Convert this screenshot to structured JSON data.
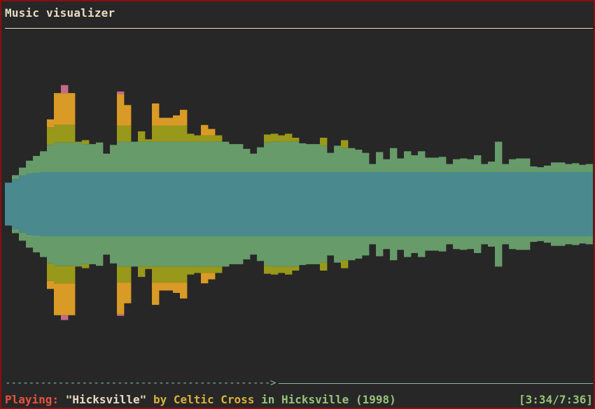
{
  "window": {
    "title": "Music visualizer"
  },
  "status": {
    "label": "Playing:",
    "track": "\"Hicksville\"",
    "by": "by",
    "artist": "Celtic Cross",
    "in": "in",
    "album": "Hicksville",
    "year": "(1998)",
    "time": "[3:34/7:36]"
  },
  "playback": {
    "progress_fraction": 0.47
  },
  "colors": {
    "background": "#272727",
    "border": "#8e0d0d",
    "band_bass": "#4a8a8e",
    "band_mid": "#679b6a",
    "band_upper": "#98981a",
    "band_high": "#d99a26",
    "band_peak": "#c46a8a"
  },
  "spectrum": {
    "columns": 84,
    "top": [
      [
        1,
        0,
        0,
        0
      ],
      [
        2,
        0,
        0,
        0
      ],
      [
        3,
        0,
        0,
        0
      ],
      [
        4,
        0,
        0,
        0
      ],
      [
        4,
        0,
        0,
        0
      ],
      [
        4,
        0,
        0,
        0
      ],
      [
        4,
        2,
        1,
        0
      ],
      [
        4,
        2,
        4,
        0
      ],
      [
        4,
        2,
        4,
        1
      ],
      [
        4,
        2,
        4,
        0
      ],
      [
        4,
        2,
        0,
        0
      ],
      [
        4,
        1,
        0,
        0
      ],
      [
        4,
        0,
        0,
        0
      ],
      [
        4,
        0,
        0,
        0
      ],
      [
        3,
        0,
        0,
        0
      ],
      [
        4,
        0,
        0,
        0
      ],
      [
        4,
        2,
        3,
        1
      ],
      [
        4,
        2,
        2,
        0
      ],
      [
        4,
        1,
        0,
        0
      ],
      [
        4,
        2,
        0,
        0
      ],
      [
        4,
        1,
        0,
        0
      ],
      [
        4,
        2,
        1,
        2
      ],
      [
        4,
        2,
        1,
        0
      ],
      [
        4,
        2,
        1,
        0
      ],
      [
        4,
        2,
        2,
        0
      ],
      [
        4,
        0,
        0,
        0
      ],
      [
        4,
        1,
        1,
        0
      ],
      [
        4,
        1,
        0,
        0
      ],
      [
        4,
        1,
        2,
        0
      ],
      [
        4,
        1,
        1,
        0
      ],
      [
        4,
        1,
        0,
        0
      ],
      [
        4,
        1,
        0,
        0
      ],
      [
        4,
        0,
        0,
        0
      ],
      [
        4,
        0,
        0,
        0
      ],
      [
        4,
        0,
        0,
        0
      ],
      [
        4,
        0,
        0,
        0
      ],
      [
        4,
        0,
        0,
        0
      ],
      [
        4,
        0,
        0,
        0
      ],
      [
        4,
        1,
        0,
        0
      ],
      [
        4,
        1,
        0,
        0
      ],
      [
        4,
        1,
        0,
        0
      ],
      [
        4,
        1,
        0,
        0
      ],
      [
        4,
        1,
        0,
        0
      ],
      [
        4,
        1,
        0,
        0
      ],
      [
        4,
        1,
        0,
        0
      ],
      [
        4,
        1,
        0,
        0
      ],
      [
        4,
        0,
        0,
        0
      ],
      [
        4,
        0,
        0,
        0
      ],
      [
        4,
        2,
        0,
        0
      ],
      [
        4,
        2,
        0,
        0
      ],
      [
        4,
        2,
        0,
        0
      ],
      [
        4,
        2,
        0,
        0
      ],
      [
        4,
        2,
        0,
        0
      ],
      [
        4,
        2,
        0,
        0
      ],
      [
        4,
        1,
        0,
        0
      ],
      [
        4,
        1,
        0,
        0
      ],
      [
        4,
        1,
        0,
        0
      ],
      [
        4,
        1,
        0,
        0
      ],
      [
        4,
        1,
        0,
        0
      ],
      [
        4,
        1,
        0,
        0
      ],
      [
        4,
        1,
        0,
        0
      ],
      [
        4,
        1,
        0,
        0
      ],
      [
        4,
        1,
        0,
        0
      ],
      [
        4,
        1,
        0,
        0
      ],
      [
        4,
        1,
        0,
        0
      ],
      [
        4,
        1,
        0,
        0
      ],
      [
        4,
        1,
        0,
        0
      ],
      [
        4,
        1,
        0,
        0
      ],
      [
        4,
        1,
        0,
        0
      ],
      [
        4,
        1,
        0,
        0
      ],
      [
        4,
        1,
        0,
        0
      ],
      [
        4,
        1,
        0,
        0
      ],
      [
        4,
        1,
        0,
        0
      ],
      [
        4,
        1,
        0,
        0
      ],
      [
        4,
        1,
        0,
        0
      ],
      [
        4,
        1,
        0,
        0
      ],
      [
        4,
        1,
        0,
        0
      ],
      [
        4,
        1,
        0,
        0
      ],
      [
        4,
        1,
        0,
        0
      ],
      [
        4,
        1,
        0,
        0
      ],
      [
        4,
        1,
        0,
        0
      ],
      [
        4,
        1,
        0,
        0
      ],
      [
        4,
        1,
        0,
        0
      ],
      [
        4,
        1,
        0,
        0
      ]
    ],
    "top_heights": [
      8,
      10,
      12,
      14,
      15,
      16,
      16,
      16,
      17,
      17,
      16,
      15,
      14,
      14,
      13,
      15,
      17,
      17,
      16,
      16,
      16,
      17,
      16,
      16,
      16,
      15,
      16,
      16,
      16,
      16,
      15,
      15,
      15,
      14,
      13,
      12,
      12,
      12,
      11,
      11,
      11,
      11,
      11,
      12,
      12,
      11,
      10,
      9,
      9,
      9,
      9,
      9,
      9,
      10,
      10,
      10,
      10,
      9,
      9,
      9,
      9,
      9,
      9,
      8,
      8,
      8,
      8,
      8,
      8,
      8,
      8,
      8,
      8,
      8,
      8,
      8,
      7,
      7,
      7,
      7,
      7,
      7,
      7,
      7
    ]
  }
}
